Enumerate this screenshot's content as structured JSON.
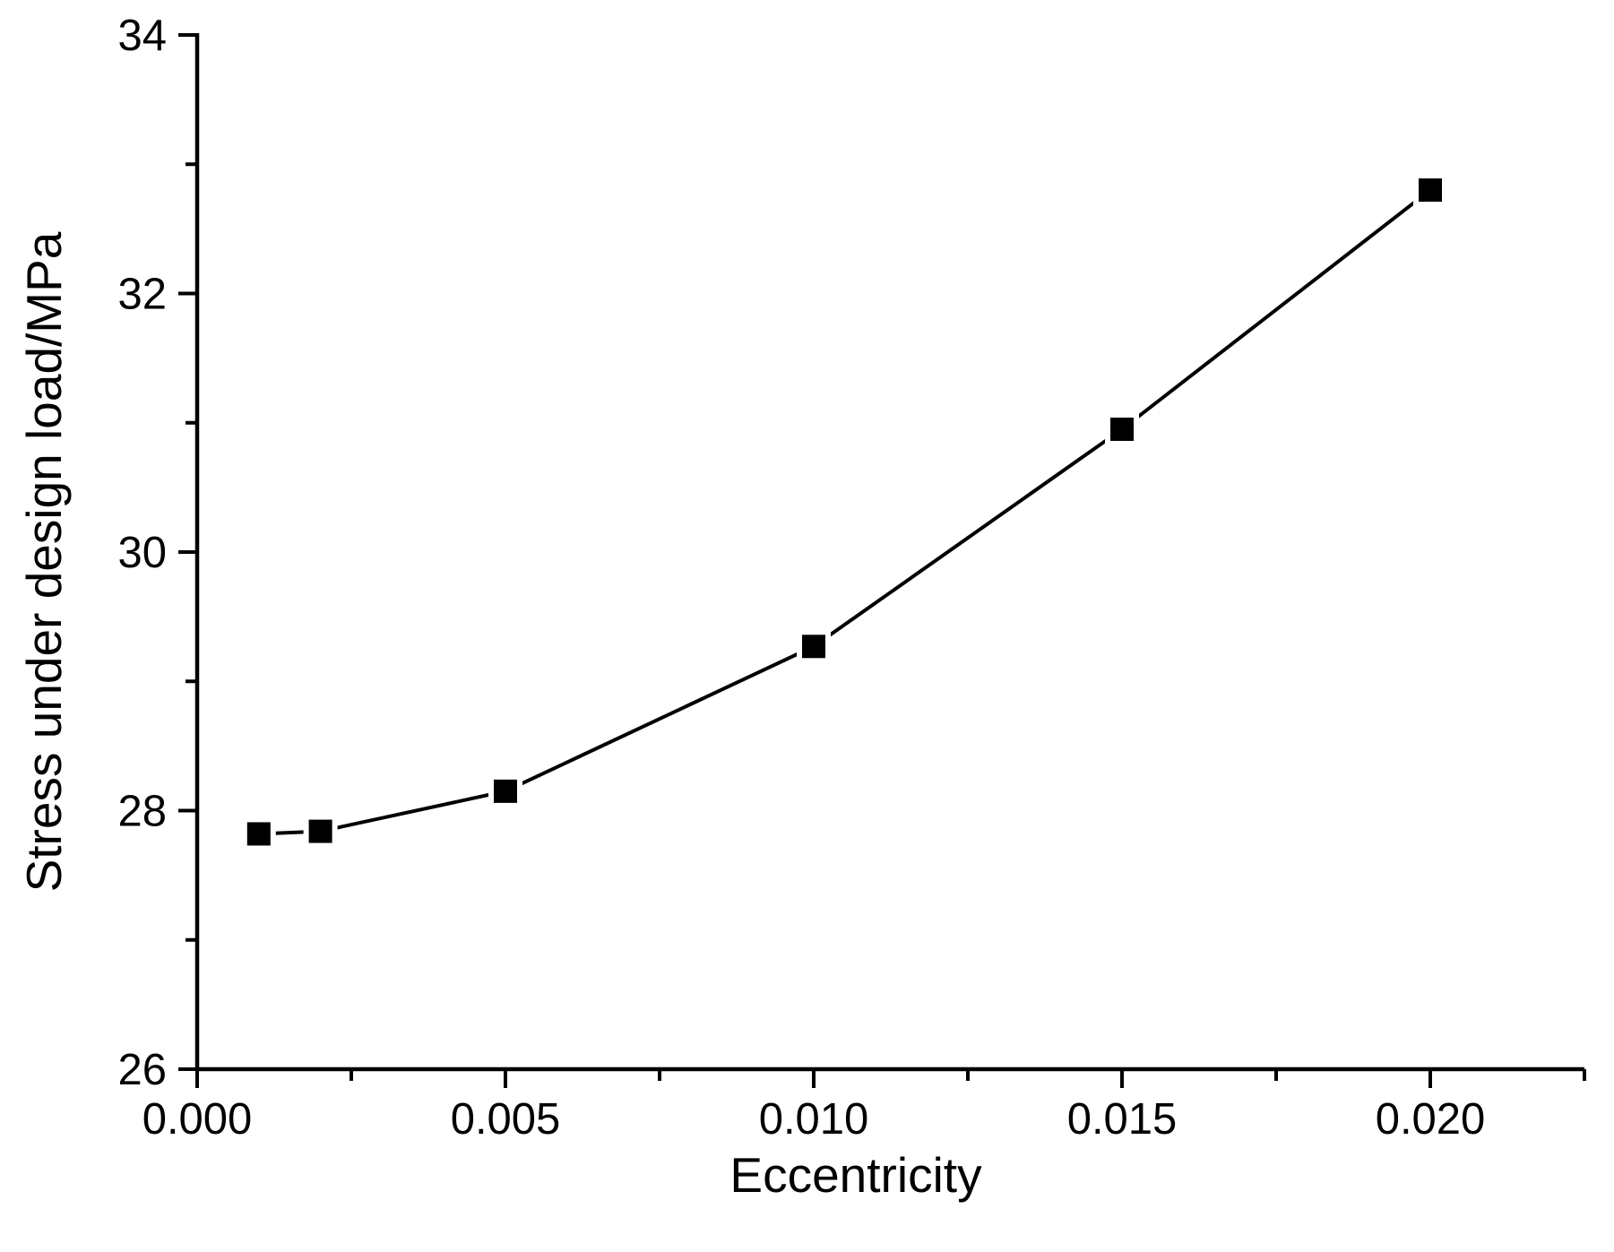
{
  "figure": {
    "background": "#ffffff",
    "foreground": "#000000"
  },
  "chart_data": {
    "type": "line",
    "title": "",
    "xlabel": "Eccentricity",
    "ylabel": "Stress under design load/MPa",
    "xlim": [
      0,
      0.0225
    ],
    "ylim": [
      26,
      34
    ],
    "grid": false,
    "legend_position": "none",
    "x_major_ticks": [
      0.0,
      0.005,
      0.01,
      0.015,
      0.02
    ],
    "x_major_tick_labels": [
      "0.000",
      "0.005",
      "0.010",
      "0.015",
      "0.020"
    ],
    "x_minor_ticks": [
      0.0025,
      0.0075,
      0.0125,
      0.0175,
      0.0225
    ],
    "y_major_ticks": [
      26,
      28,
      30,
      32,
      34
    ],
    "y_major_tick_labels": [
      "26",
      "28",
      "30",
      "32",
      "34"
    ],
    "y_minor_ticks": [
      27,
      29,
      31,
      33
    ],
    "series": [
      {
        "name": "Stress under design load",
        "marker": "filled-square",
        "line_style": "solid",
        "color": "#000000",
        "x": [
          0.001,
          0.002,
          0.005,
          0.01,
          0.015,
          0.02
        ],
        "y": [
          27.82,
          27.84,
          28.15,
          29.27,
          30.95,
          32.8
        ]
      }
    ]
  }
}
